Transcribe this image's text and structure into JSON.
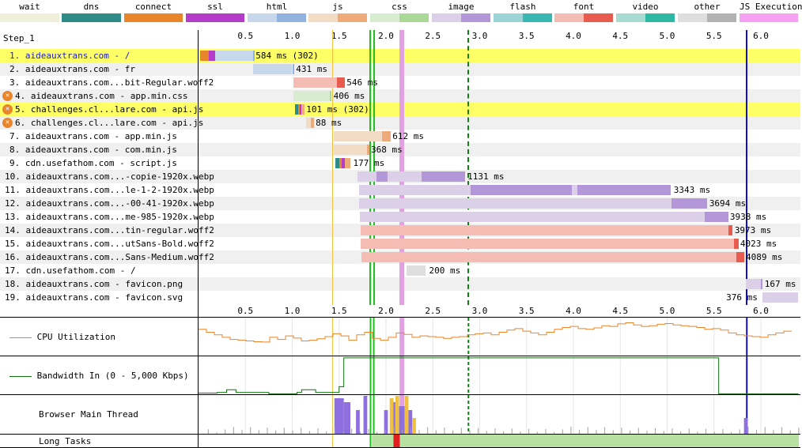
{
  "legend": [
    {
      "label": "wait",
      "colors": [
        "#f0f0da",
        "#f0f0da"
      ]
    },
    {
      "label": "dns",
      "colors": [
        "#2e8b87",
        "#2e8b87"
      ]
    },
    {
      "label": "connect",
      "colors": [
        "#e8852a",
        "#e8852a"
      ]
    },
    {
      "label": "ssl",
      "colors": [
        "#b43cc8",
        "#b43cc8"
      ]
    },
    {
      "label": "html",
      "colors": [
        "#c8d8ec",
        "#92b2e2"
      ]
    },
    {
      "label": "js",
      "colors": [
        "#f2dcc6",
        "#eeaa78"
      ]
    },
    {
      "label": "css",
      "colors": [
        "#d8ecd0",
        "#aad896"
      ]
    },
    {
      "label": "image",
      "colors": [
        "#dccfe8",
        "#b497d8"
      ]
    },
    {
      "label": "flash",
      "colors": [
        "#9ad4d4",
        "#38b8b2"
      ]
    },
    {
      "label": "font",
      "colors": [
        "#f4bcb2",
        "#e85c50"
      ]
    },
    {
      "label": "video",
      "colors": [
        "#a8dcd0",
        "#2cb8a2"
      ]
    },
    {
      "label": "other",
      "colors": [
        "#dedede",
        "#b2b2b2"
      ]
    },
    {
      "label": "JS Execution",
      "colors": [
        "#f6a0f2",
        "#f6a0f2"
      ]
    }
  ],
  "step_label": "Step_1",
  "time_ticks": [
    "0.5",
    "1.0",
    "1.5",
    "2.0",
    "2.5",
    "3.0",
    "3.5",
    "4.0",
    "4.5",
    "5.0",
    "5.5",
    "6.0"
  ],
  "rows": [
    {
      "label": "1. aideauxtrans.com - /",
      "timing": "584 ms (302)",
      "highlight": true,
      "link": true,
      "icon": false
    },
    {
      "label": "2. aideauxtrans.com - fr",
      "timing": "431 ms",
      "highlight": false,
      "link": false,
      "icon": false
    },
    {
      "label": "3. aideauxtrans.com...bit-Regular.woff2",
      "timing": "546 ms",
      "highlight": false,
      "link": false,
      "icon": false
    },
    {
      "label": "4. aideauxtrans.com - app.min.css",
      "timing": "406 ms",
      "highlight": false,
      "link": false,
      "icon": true
    },
    {
      "label": "5. challenges.cl...lare.com - api.js",
      "timing": "101 ms (302)",
      "highlight": true,
      "link": false,
      "icon": true
    },
    {
      "label": "6. challenges.cl...lare.com - api.js",
      "timing": "88 ms",
      "highlight": false,
      "link": false,
      "icon": true
    },
    {
      "label": "7. aideauxtrans.com - app.min.js",
      "timing": "612 ms",
      "highlight": false,
      "link": false,
      "icon": false
    },
    {
      "label": "8. aideauxtrans.com - com.min.js",
      "timing": "368 ms",
      "highlight": false,
      "link": false,
      "icon": false
    },
    {
      "label": "9. cdn.usefathom.com - script.js",
      "timing": "177 ms",
      "highlight": false,
      "link": false,
      "icon": false
    },
    {
      "label": "10. aideauxtrans.com...-copie-1920x.webp",
      "timing": "1131 ms",
      "highlight": false,
      "link": false,
      "icon": false
    },
    {
      "label": "11. aideauxtrans.com...le-1-2-1920x.webp",
      "timing": "3343 ms",
      "highlight": false,
      "link": false,
      "icon": false
    },
    {
      "label": "12. aideauxtrans.com...-00-41-1920x.webp",
      "timing": "3694 ms",
      "highlight": false,
      "link": false,
      "icon": false
    },
    {
      "label": "13. aideauxtrans.com...me-985-1920x.webp",
      "timing": "3938 ms",
      "highlight": false,
      "link": false,
      "icon": false
    },
    {
      "label": "14. aideauxtrans.com...tin-regular.woff2",
      "timing": "3973 ms",
      "highlight": false,
      "link": false,
      "icon": false
    },
    {
      "label": "15. aideauxtrans.com...utSans-Bold.woff2",
      "timing": "4023 ms",
      "highlight": false,
      "link": false,
      "icon": false
    },
    {
      "label": "16. aideauxtrans.com...Sans-Medium.woff2",
      "timing": "4089 ms",
      "highlight": false,
      "link": false,
      "icon": false
    },
    {
      "label": "17. cdn.usefathom.com - /",
      "timing": "200 ms",
      "highlight": false,
      "link": false,
      "icon": false
    },
    {
      "label": "18. aideauxtrans.com - favicon.png",
      "timing": "167 ms",
      "highlight": false,
      "link": false,
      "icon": false
    },
    {
      "label": "19. aideauxtrans.com - favicon.svg",
      "timing": "376 ms",
      "highlight": false,
      "link": false,
      "icon": false
    }
  ],
  "graphs": {
    "cpu_label": "CPU Utilization",
    "bandwidth_label": "Bandwidth In (0 - 5,000 Kbps)",
    "main_thread_label": "Browser Main Thread",
    "long_tasks_label": "Long Tasks"
  },
  "colors": {
    "highlight": "#ffff66",
    "alt_row": "#f0f0f0",
    "cpu": "#e8852a",
    "bandwidth": "#107010",
    "start_render": "#20c020",
    "dom_loaded": "#e2a2e2",
    "onload": "#108010",
    "dom_interactive": "#f0c040",
    "lcp": "#1010c8",
    "long_task": "#e02020",
    "idle": "#b8e0a0"
  }
}
